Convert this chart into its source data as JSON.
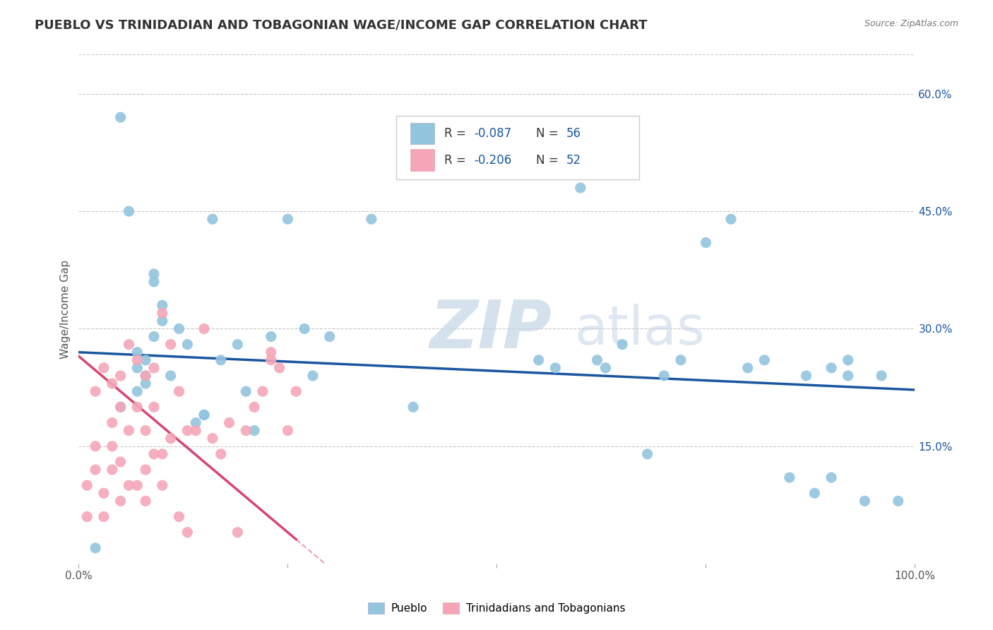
{
  "title": "PUEBLO VS TRINIDADIAN AND TOBAGONIAN WAGE/INCOME GAP CORRELATION CHART",
  "source": "Source: ZipAtlas.com",
  "ylabel": "Wage/Income Gap",
  "xlim": [
    0,
    1.0
  ],
  "ylim": [
    0,
    0.65
  ],
  "blue_color": "#92c5de",
  "pink_color": "#f4a6b8",
  "line_blue": "#1a56a0",
  "line_pink": "#d9446e",
  "pueblo_x": [
    0.02,
    0.05,
    0.06,
    0.07,
    0.07,
    0.08,
    0.08,
    0.09,
    0.09,
    0.1,
    0.1,
    0.11,
    0.12,
    0.13,
    0.14,
    0.15,
    0.16,
    0.17,
    0.19,
    0.2,
    0.21,
    0.23,
    0.25,
    0.27,
    0.28,
    0.3,
    0.35,
    0.4,
    0.55,
    0.57,
    0.6,
    0.62,
    0.63,
    0.65,
    0.68,
    0.7,
    0.72,
    0.75,
    0.78,
    0.8,
    0.82,
    0.85,
    0.87,
    0.88,
    0.9,
    0.92,
    0.94,
    0.96,
    0.98,
    0.05,
    0.07,
    0.08,
    0.09,
    0.15,
    0.9,
    0.92
  ],
  "pueblo_y": [
    0.02,
    0.57,
    0.45,
    0.25,
    0.27,
    0.24,
    0.26,
    0.36,
    0.37,
    0.31,
    0.33,
    0.24,
    0.3,
    0.28,
    0.18,
    0.19,
    0.44,
    0.26,
    0.28,
    0.22,
    0.17,
    0.29,
    0.44,
    0.3,
    0.24,
    0.29,
    0.44,
    0.2,
    0.26,
    0.25,
    0.48,
    0.26,
    0.25,
    0.28,
    0.14,
    0.24,
    0.26,
    0.41,
    0.44,
    0.25,
    0.26,
    0.11,
    0.24,
    0.09,
    0.11,
    0.24,
    0.08,
    0.24,
    0.08,
    0.2,
    0.22,
    0.23,
    0.29,
    0.19,
    0.25,
    0.26
  ],
  "trini_x": [
    0.01,
    0.01,
    0.02,
    0.02,
    0.02,
    0.03,
    0.03,
    0.03,
    0.04,
    0.04,
    0.04,
    0.04,
    0.05,
    0.05,
    0.05,
    0.05,
    0.06,
    0.06,
    0.06,
    0.07,
    0.07,
    0.07,
    0.08,
    0.08,
    0.08,
    0.08,
    0.09,
    0.09,
    0.09,
    0.1,
    0.1,
    0.1,
    0.11,
    0.11,
    0.12,
    0.12,
    0.13,
    0.13,
    0.14,
    0.15,
    0.16,
    0.17,
    0.18,
    0.19,
    0.2,
    0.21,
    0.22,
    0.23,
    0.23,
    0.24,
    0.25,
    0.26
  ],
  "trini_y": [
    0.1,
    0.06,
    0.22,
    0.15,
    0.12,
    0.06,
    0.09,
    0.25,
    0.12,
    0.15,
    0.18,
    0.23,
    0.08,
    0.13,
    0.2,
    0.24,
    0.1,
    0.17,
    0.28,
    0.1,
    0.26,
    0.2,
    0.08,
    0.12,
    0.17,
    0.24,
    0.14,
    0.2,
    0.25,
    0.1,
    0.14,
    0.32,
    0.16,
    0.28,
    0.06,
    0.22,
    0.04,
    0.17,
    0.17,
    0.3,
    0.16,
    0.14,
    0.18,
    0.04,
    0.17,
    0.2,
    0.22,
    0.26,
    0.27,
    0.25,
    0.17,
    0.22
  ]
}
